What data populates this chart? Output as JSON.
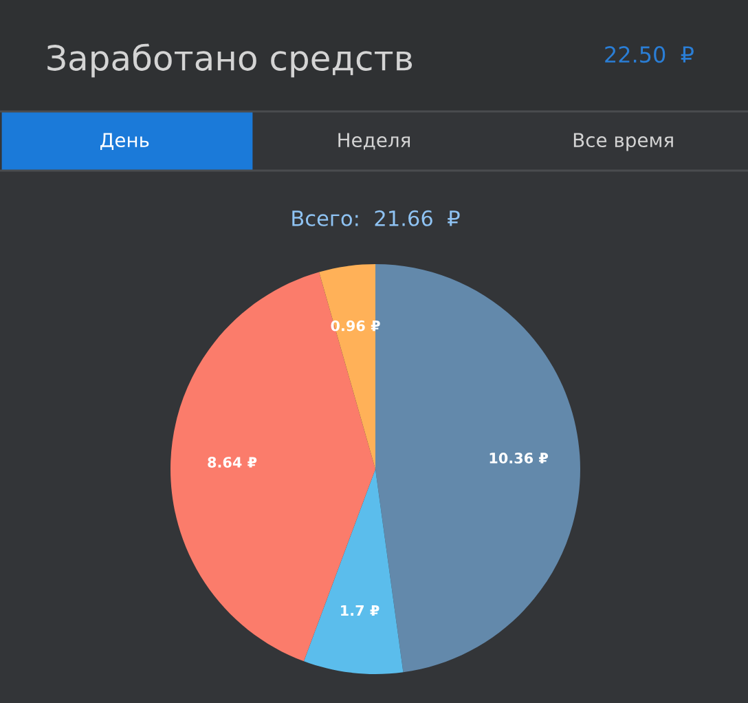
{
  "chart_data": {
    "type": "pie",
    "title": "Заработано средств",
    "subtitle": "Всего:  21.66  ₽",
    "annotations": [
      "22.50  ₽",
      "День",
      "Неделя",
      "Все время"
    ],
    "categories": [
      null,
      null,
      null,
      null
    ],
    "values": [
      10.36,
      1.7,
      8.64,
      0.96
    ],
    "colors": [
      "#6389ab",
      "#5bbdec",
      "#fb7c6b",
      "#ffb158"
    ],
    "value_labels": [
      "10.36 ₽",
      "1.7 ₽",
      "8.64 ₽",
      "0.96 ₽"
    ],
    "legend": false
  }
}
